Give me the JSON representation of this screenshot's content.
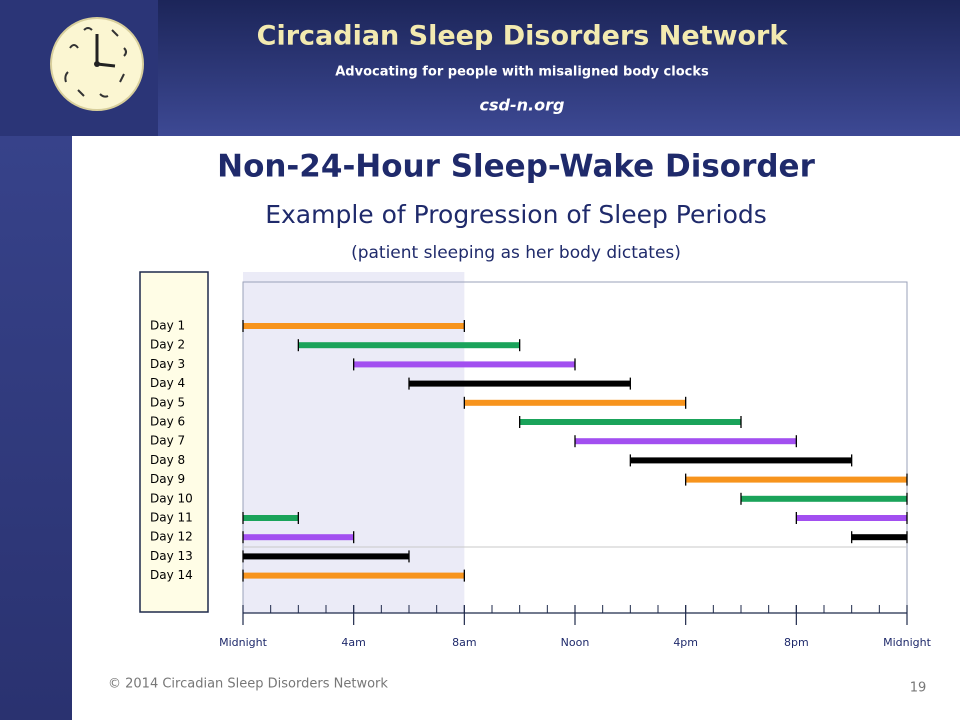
{
  "header": {
    "org": "Circadian Sleep Disorders Network",
    "tagline": "Advocating for people with misaligned body clocks",
    "site": "csd-n.org"
  },
  "chart_data": {
    "type": "gantt",
    "title": "Non-24-Hour Sleep-Wake Disorder",
    "subtitle": "Example of Progression of Sleep Periods",
    "note": "(patient sleeping as her body dictates)",
    "xlim": [
      0,
      24
    ],
    "xticks": [
      {
        "value": 0,
        "label": "Midnight"
      },
      {
        "value": 4,
        "label": "4am"
      },
      {
        "value": 8,
        "label": "8am"
      },
      {
        "value": 12,
        "label": "Noon"
      },
      {
        "value": 16,
        "label": "4pm"
      },
      {
        "value": 20,
        "label": "8pm"
      },
      {
        "value": 24,
        "label": "Midnight"
      }
    ],
    "minor_tick_step": 1,
    "shaded_range": [
      0,
      8
    ],
    "rows": [
      {
        "label": "Day 1",
        "segments": [
          {
            "start": 0,
            "end": 8,
            "color": "#f7941d"
          }
        ]
      },
      {
        "label": "Day 2",
        "segments": [
          {
            "start": 2,
            "end": 10,
            "color": "#1aa35a"
          }
        ]
      },
      {
        "label": "Day 3",
        "segments": [
          {
            "start": 4,
            "end": 12,
            "color": "#a24ff0"
          }
        ]
      },
      {
        "label": "Day 4",
        "segments": [
          {
            "start": 6,
            "end": 14,
            "color": "#000000"
          }
        ]
      },
      {
        "label": "Day 5",
        "segments": [
          {
            "start": 8,
            "end": 16,
            "color": "#f7941d"
          }
        ]
      },
      {
        "label": "Day 6",
        "segments": [
          {
            "start": 10,
            "end": 18,
            "color": "#1aa35a"
          }
        ]
      },
      {
        "label": "Day 7",
        "segments": [
          {
            "start": 12,
            "end": 20,
            "color": "#a24ff0"
          }
        ]
      },
      {
        "label": "Day 8",
        "segments": [
          {
            "start": 14,
            "end": 22,
            "color": "#000000"
          }
        ]
      },
      {
        "label": "Day 9",
        "segments": [
          {
            "start": 16,
            "end": 24,
            "color": "#f7941d"
          }
        ]
      },
      {
        "label": "Day 10",
        "segments": [
          {
            "start": 18,
            "end": 24,
            "color": "#1aa35a"
          }
        ]
      },
      {
        "label": "Day 11",
        "segments": [
          {
            "start": 0,
            "end": 2,
            "color": "#1aa35a"
          },
          {
            "start": 20,
            "end": 24,
            "color": "#a24ff0"
          }
        ]
      },
      {
        "label": "Day 12",
        "segments": [
          {
            "start": 0,
            "end": 4,
            "color": "#a24ff0"
          },
          {
            "start": 22,
            "end": 24,
            "color": "#000000"
          }
        ]
      },
      {
        "label": "Day 13",
        "segments": [
          {
            "start": 0,
            "end": 6,
            "color": "#000000"
          }
        ]
      },
      {
        "label": "Day 14",
        "segments": [
          {
            "start": 0,
            "end": 8,
            "color": "#f7941d"
          }
        ]
      }
    ]
  },
  "footer": {
    "copyright": "© 2014 Circadian Sleep Disorders Network",
    "page": "19"
  }
}
